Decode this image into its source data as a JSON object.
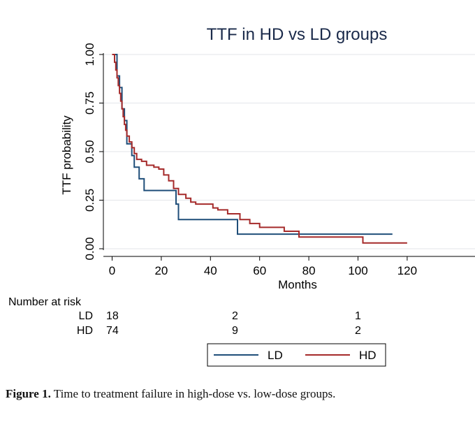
{
  "chart_data": {
    "type": "line",
    "title": "TTF in HD vs LD groups",
    "xlabel": "Months",
    "ylabel": "TTF probability",
    "xlim": [
      0,
      140
    ],
    "ylim": [
      0,
      1
    ],
    "xticks": [
      "0",
      "20",
      "40",
      "60",
      "80",
      "100",
      "120"
    ],
    "yticks": [
      "0.00",
      "0.25",
      "0.50",
      "0.75",
      "1.00"
    ],
    "grid": true,
    "legend_position": "bottom-right",
    "series": [
      {
        "name": "LD",
        "color": "#1f4e79",
        "step_points": [
          [
            0,
            1.0
          ],
          [
            2,
            1.0
          ],
          [
            2,
            0.89
          ],
          [
            3,
            0.89
          ],
          [
            3,
            0.83
          ],
          [
            4,
            0.83
          ],
          [
            4,
            0.72
          ],
          [
            5,
            0.72
          ],
          [
            5,
            0.66
          ],
          [
            6,
            0.66
          ],
          [
            6,
            0.54
          ],
          [
            8,
            0.54
          ],
          [
            8,
            0.48
          ],
          [
            9,
            0.48
          ],
          [
            9,
            0.42
          ],
          [
            11,
            0.42
          ],
          [
            11,
            0.36
          ],
          [
            13,
            0.36
          ],
          [
            13,
            0.3
          ],
          [
            26,
            0.3
          ],
          [
            26,
            0.23
          ],
          [
            27,
            0.23
          ],
          [
            27,
            0.15
          ],
          [
            51,
            0.15
          ],
          [
            51,
            0.075
          ],
          [
            114,
            0.075
          ]
        ]
      },
      {
        "name": "HD",
        "color": "#a52a2a",
        "step_points": [
          [
            0,
            1.0
          ],
          [
            1,
            1.0
          ],
          [
            1,
            0.96
          ],
          [
            1.5,
            0.96
          ],
          [
            1.5,
            0.92
          ],
          [
            2,
            0.92
          ],
          [
            2,
            0.88
          ],
          [
            2.5,
            0.88
          ],
          [
            2.5,
            0.84
          ],
          [
            3,
            0.84
          ],
          [
            3,
            0.8
          ],
          [
            3.5,
            0.8
          ],
          [
            3.5,
            0.76
          ],
          [
            4,
            0.76
          ],
          [
            4,
            0.72
          ],
          [
            4.5,
            0.72
          ],
          [
            4.5,
            0.68
          ],
          [
            5,
            0.68
          ],
          [
            5,
            0.64
          ],
          [
            5.5,
            0.64
          ],
          [
            5.5,
            0.61
          ],
          [
            6,
            0.61
          ],
          [
            6,
            0.58
          ],
          [
            7,
            0.58
          ],
          [
            7,
            0.55
          ],
          [
            8,
            0.55
          ],
          [
            8,
            0.52
          ],
          [
            9,
            0.52
          ],
          [
            9,
            0.49
          ],
          [
            10,
            0.49
          ],
          [
            10,
            0.46
          ],
          [
            12,
            0.46
          ],
          [
            12,
            0.45
          ],
          [
            14,
            0.45
          ],
          [
            14,
            0.43
          ],
          [
            17,
            0.43
          ],
          [
            17,
            0.42
          ],
          [
            19,
            0.42
          ],
          [
            19,
            0.41
          ],
          [
            21,
            0.41
          ],
          [
            21,
            0.38
          ],
          [
            23,
            0.38
          ],
          [
            23,
            0.35
          ],
          [
            25,
            0.35
          ],
          [
            25,
            0.31
          ],
          [
            27,
            0.31
          ],
          [
            27,
            0.28
          ],
          [
            30,
            0.28
          ],
          [
            30,
            0.26
          ],
          [
            32,
            0.26
          ],
          [
            32,
            0.24
          ],
          [
            34,
            0.24
          ],
          [
            34,
            0.23
          ],
          [
            41,
            0.23
          ],
          [
            41,
            0.21
          ],
          [
            43,
            0.21
          ],
          [
            43,
            0.2
          ],
          [
            47,
            0.2
          ],
          [
            47,
            0.18
          ],
          [
            52,
            0.18
          ],
          [
            52,
            0.15
          ],
          [
            56,
            0.15
          ],
          [
            56,
            0.13
          ],
          [
            60,
            0.13
          ],
          [
            60,
            0.11
          ],
          [
            70,
            0.11
          ],
          [
            70,
            0.09
          ],
          [
            76,
            0.09
          ],
          [
            76,
            0.06
          ],
          [
            102,
            0.06
          ],
          [
            102,
            0.03
          ],
          [
            120,
            0.03
          ]
        ]
      }
    ],
    "risk_table": {
      "title": "Number at risk",
      "time_points": [
        0,
        50,
        100
      ],
      "rows": [
        {
          "label": "LD",
          "values": [
            "18",
            "2",
            "1"
          ]
        },
        {
          "label": "HD",
          "values": [
            "74",
            "9",
            "2"
          ]
        }
      ]
    }
  },
  "caption": {
    "label": "Figure 1.",
    "text": " Time to treatment failure in high-dose vs. low-dose groups."
  }
}
